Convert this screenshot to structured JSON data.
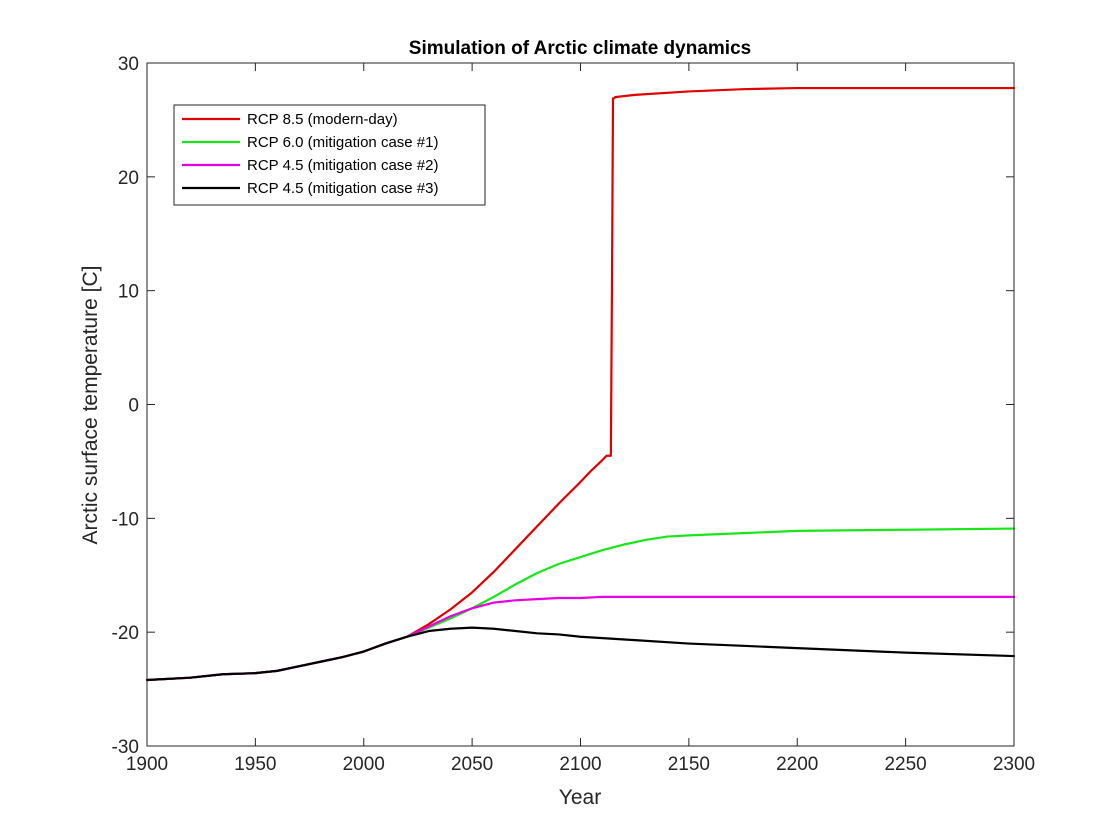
{
  "chart_data": {
    "type": "line",
    "title": "Simulation of Arctic climate dynamics",
    "xlabel": "Year",
    "ylabel": "Arctic surface temperature [C]",
    "xlim": [
      1900,
      2300
    ],
    "ylim": [
      -30,
      30
    ],
    "xticks": [
      1900,
      1950,
      2000,
      2050,
      2100,
      2150,
      2200,
      2250,
      2300
    ],
    "yticks": [
      -30,
      -20,
      -10,
      0,
      10,
      20,
      30
    ],
    "legend_position": "top-left",
    "series": [
      {
        "name": "RCP 8.5 (modern-day)",
        "color": "#e00000",
        "x": [
          1900,
          1920,
          1935,
          1950,
          1960,
          1970,
          1980,
          1990,
          2000,
          2010,
          2020,
          2030,
          2040,
          2050,
          2060,
          2070,
          2080,
          2090,
          2100,
          2105,
          2110,
          2112,
          2113,
          2114,
          2114.5,
          2115,
          2115.5,
          2116,
          2125,
          2150,
          2175,
          2200,
          2250,
          2300
        ],
        "y": [
          -24.2,
          -24.0,
          -23.7,
          -23.6,
          -23.4,
          -23.0,
          -22.6,
          -22.2,
          -21.7,
          -21.0,
          -20.4,
          -19.3,
          -18.0,
          -16.5,
          -14.7,
          -12.7,
          -10.7,
          -8.7,
          -6.8,
          -5.8,
          -4.9,
          -4.5,
          -4.5,
          -4.5,
          10.0,
          26.9,
          26.9,
          27.0,
          27.2,
          27.5,
          27.7,
          27.8,
          27.8,
          27.8
        ]
      },
      {
        "name": "RCP 6.0 (mitigation case #1)",
        "color": "#19e619",
        "x": [
          1900,
          1920,
          1935,
          1950,
          1960,
          1970,
          1980,
          1990,
          2000,
          2010,
          2020,
          2030,
          2040,
          2050,
          2060,
          2070,
          2080,
          2090,
          2100,
          2110,
          2120,
          2130,
          2140,
          2150,
          2175,
          2200,
          2250,
          2300
        ],
        "y": [
          -24.2,
          -24.0,
          -23.7,
          -23.6,
          -23.4,
          -23.0,
          -22.6,
          -22.2,
          -21.7,
          -21.0,
          -20.4,
          -19.6,
          -18.8,
          -17.9,
          -16.9,
          -15.8,
          -14.8,
          -14.0,
          -13.4,
          -12.8,
          -12.3,
          -11.9,
          -11.6,
          -11.5,
          -11.3,
          -11.1,
          -11.0,
          -10.9
        ]
      },
      {
        "name": "RCP 4.5 (mitigation case #2)",
        "color": "#e600e6",
        "x": [
          1900,
          1920,
          1935,
          1950,
          1960,
          1970,
          1980,
          1990,
          2000,
          2010,
          2020,
          2030,
          2040,
          2050,
          2060,
          2070,
          2080,
          2090,
          2100,
          2110,
          2120,
          2150,
          2200,
          2250,
          2300
        ],
        "y": [
          -24.2,
          -24.0,
          -23.7,
          -23.6,
          -23.4,
          -23.0,
          -22.6,
          -22.2,
          -21.7,
          -21.0,
          -20.4,
          -19.5,
          -18.6,
          -17.9,
          -17.4,
          -17.2,
          -17.1,
          -17.0,
          -17.0,
          -16.9,
          -16.9,
          -16.9,
          -16.9,
          -16.9,
          -16.9
        ]
      },
      {
        "name": "RCP 4.5 (mitigation case #3)",
        "color": "#000000",
        "x": [
          1900,
          1920,
          1935,
          1950,
          1960,
          1970,
          1980,
          1990,
          2000,
          2010,
          2020,
          2030,
          2040,
          2050,
          2060,
          2070,
          2080,
          2090,
          2100,
          2125,
          2150,
          2175,
          2200,
          2250,
          2300
        ],
        "y": [
          -24.2,
          -24.0,
          -23.7,
          -23.6,
          -23.4,
          -23.0,
          -22.6,
          -22.2,
          -21.7,
          -21.0,
          -20.4,
          -19.9,
          -19.7,
          -19.6,
          -19.7,
          -19.9,
          -20.1,
          -20.2,
          -20.4,
          -20.7,
          -21.0,
          -21.2,
          -21.4,
          -21.8,
          -22.1
        ]
      }
    ]
  }
}
